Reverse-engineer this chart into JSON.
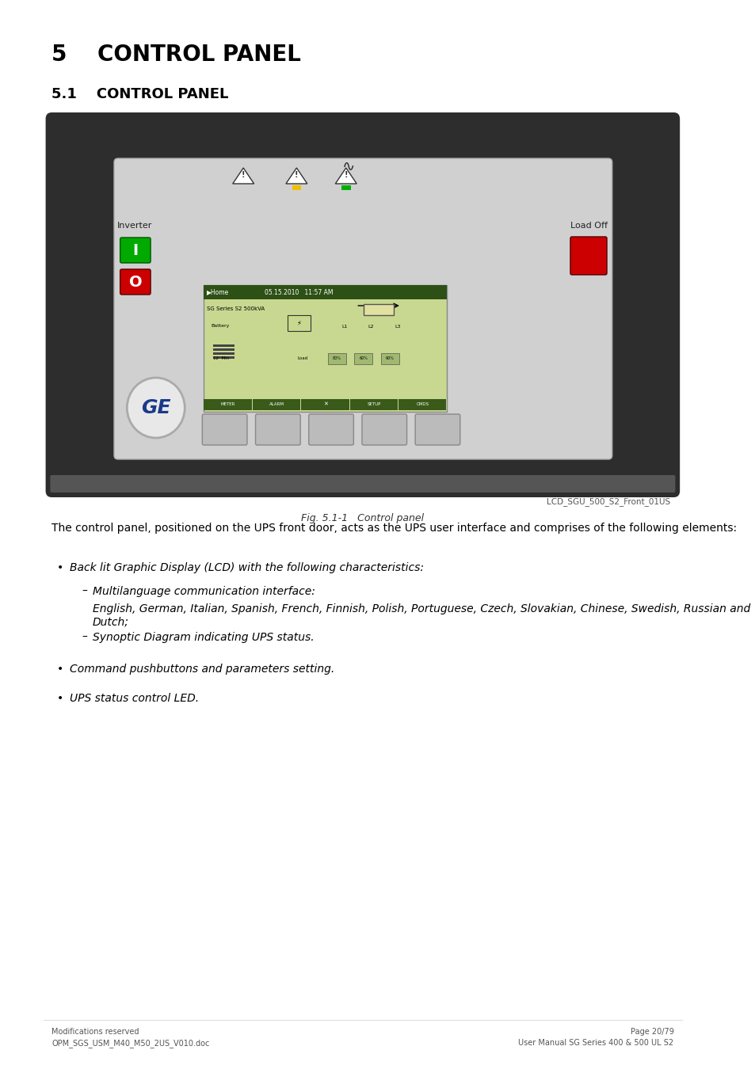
{
  "title1": "5    CONTROL PANEL",
  "title2": "5.1    CONTROL PANEL",
  "fig_caption": "Fig. 5.1-1   Control panel",
  "fig_label": "LCD_SGU_500_S2_Front_01US",
  "body_text": "The control panel, positioned on the UPS front door, acts as the UPS user interface and comprises of the following elements:",
  "bullet1": "Back lit Graphic Display (LCD) with the following characteristics:",
  "sub_bullet1a_title": "Multilanguage communication interface:",
  "sub_bullet1a_body": "English, German, Italian, Spanish, French, Finnish, Polish, Portuguese, Czech, Slovakian, Chinese, Swedish, Russian and Dutch;",
  "sub_bullet1b": "Synoptic Diagram indicating UPS status.",
  "bullet2": "Command pushbuttons and parameters setting.",
  "bullet3": "UPS status control LED.",
  "footer_left1": "Modifications reserved",
  "footer_left2": "OPM_SGS_USM_M40_M50_2US_V010.doc",
  "footer_right1": "Page 20/79",
  "footer_right2": "User Manual SG Series 400 & 500 UL S2",
  "bg_color": "#ffffff",
  "panel_outer_color": "#3a3a3a",
  "panel_inner_color": "#c8c8c8",
  "lcd_color": "#c8d4a0",
  "lcd_bg_color": "#b8c880",
  "inverter_label": "Inverter",
  "load_off_label": "Load Off"
}
